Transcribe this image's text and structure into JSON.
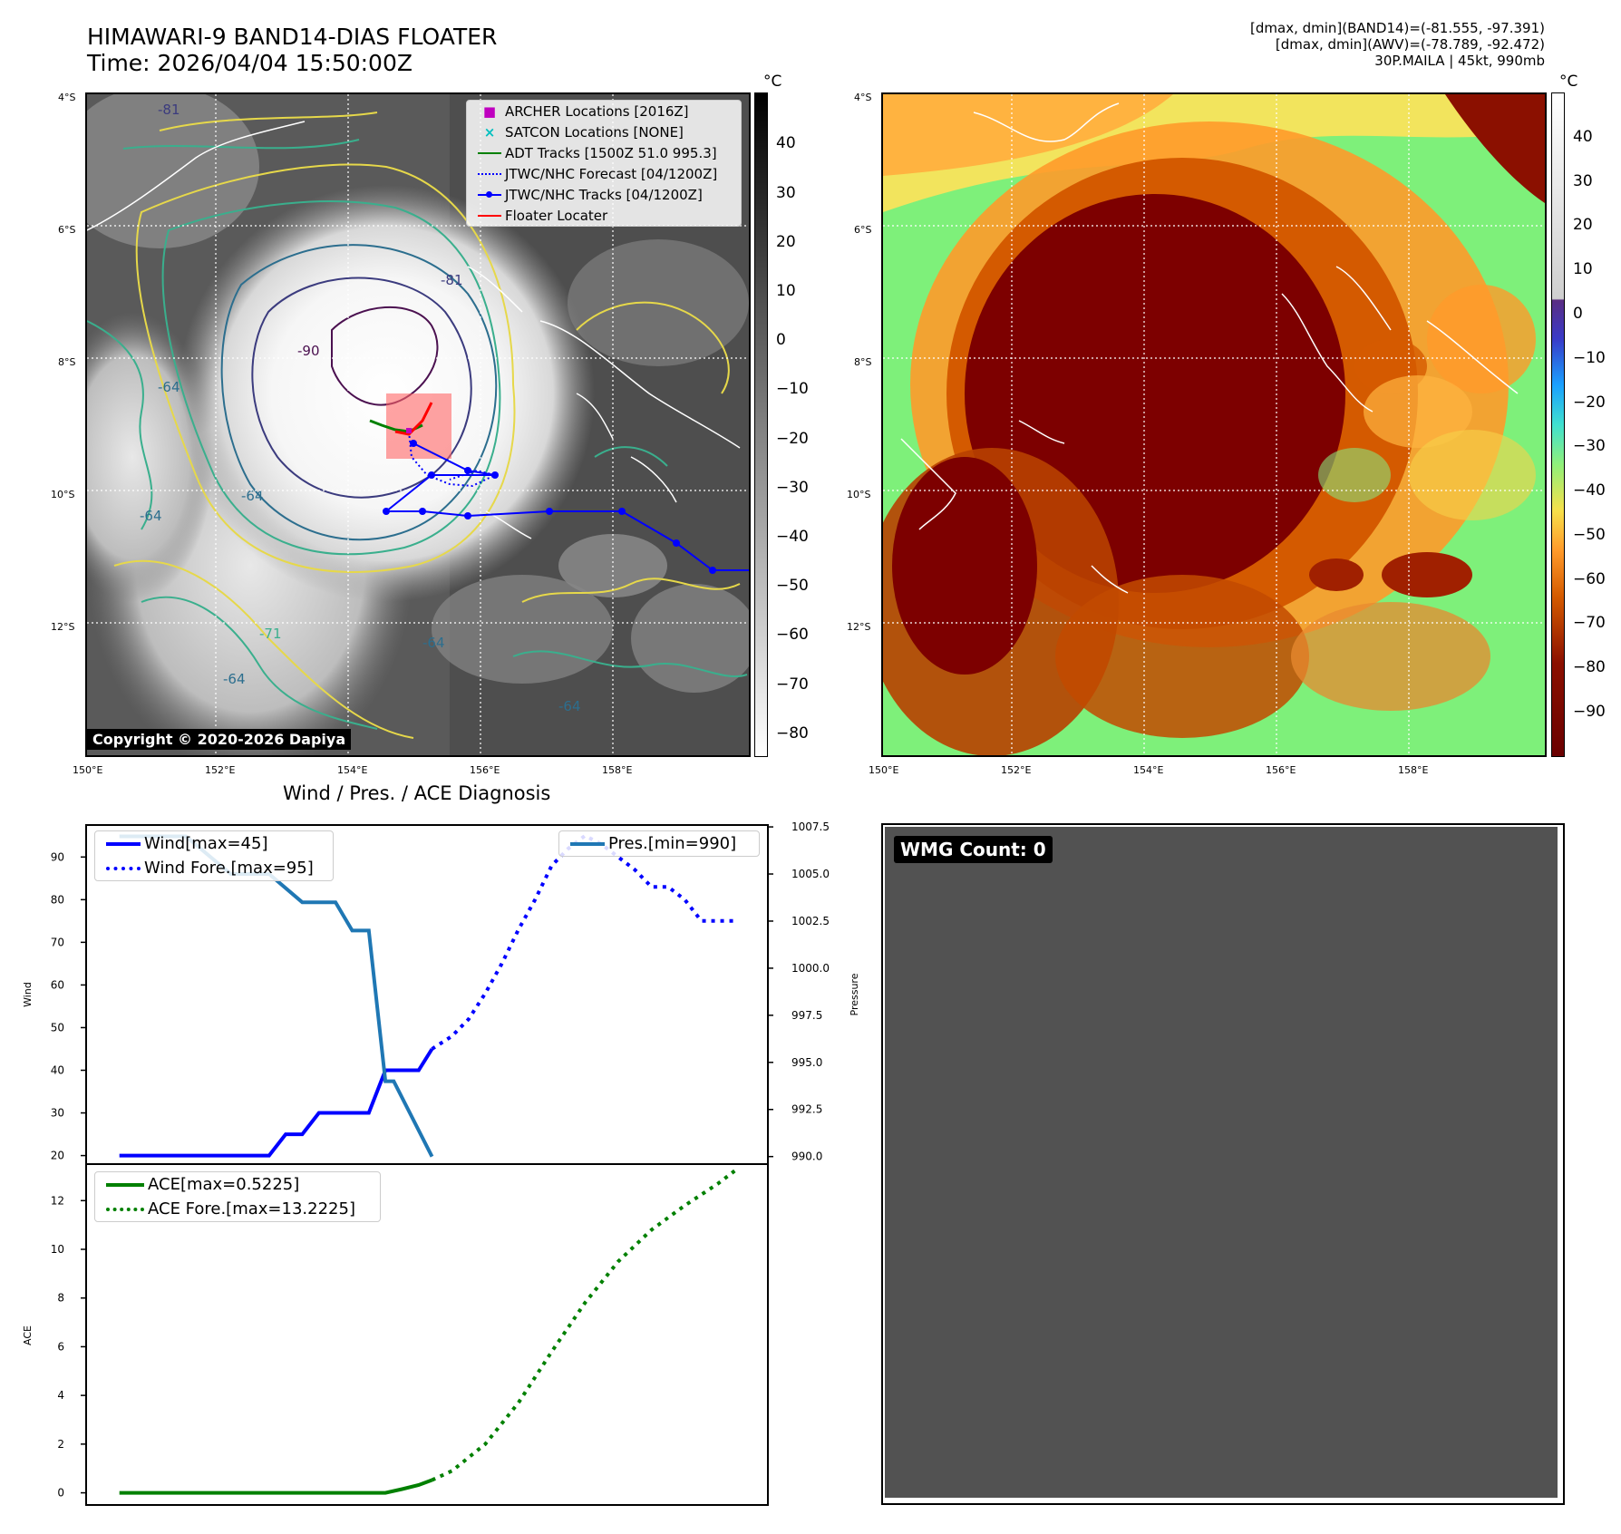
{
  "header": {
    "title_line1": "HIMAWARI-9 BAND14-DIAS FLOATER",
    "title_line2": "Time: 2026/04/04 15:50:00Z",
    "info_line1": "[dmax, dmin](BAND14)=(-81.555, -97.391)",
    "info_line2": "[dmax, dmin](AWV)=(-78.789, -92.472)",
    "info_line3": "30P.MAILA | 45kt, 990mb"
  },
  "map_left": {
    "lat_ticks": [
      "4°S",
      "6°S",
      "8°S",
      "10°S",
      "12°S"
    ],
    "lon_ticks": [
      "150°E",
      "152°E",
      "154°E",
      "156°E",
      "158°E"
    ],
    "colorbar_unit": "°C",
    "colorbar_ticks": [
      "40",
      "30",
      "20",
      "10",
      "0",
      "−10",
      "−20",
      "−30",
      "−40",
      "−50",
      "−60",
      "−70",
      "−80"
    ],
    "legend": [
      {
        "label": "ARCHER Locations [2016Z]",
        "color": "#bf00bf"
      },
      {
        "label": "SATCON Locations [NONE]",
        "color": "#00bfbf"
      },
      {
        "label": "ADT Tracks [1500Z 51.0 995.3]",
        "color": "#008000"
      },
      {
        "label": "JTWC/NHC Forecast [04/1200Z]",
        "color": "#0000ff"
      },
      {
        "label": "JTWC/NHC Tracks [04/1200Z]",
        "color": "#0000ff"
      },
      {
        "label": "Floater Locater",
        "color": "#ff0000"
      }
    ],
    "contour_labels": [
      "-81",
      "-90",
      "-64",
      "-64",
      "-64",
      "-64",
      "-64",
      "-81",
      "-71",
      "-64"
    ],
    "copyright": "Copyright © 2020-2026 Dapiya"
  },
  "map_right": {
    "lat_ticks": [
      "4°S",
      "6°S",
      "8°S",
      "10°S",
      "12°S"
    ],
    "lon_ticks": [
      "150°E",
      "152°E",
      "154°E",
      "156°E",
      "158°E"
    ],
    "colorbar_unit": "°C",
    "colorbar_ticks": [
      "40",
      "30",
      "20",
      "10",
      "0",
      "−10",
      "−20",
      "−30",
      "−40",
      "−50",
      "−60",
      "−70",
      "−80",
      "−90"
    ]
  },
  "diag_title": "Wind / Pres. / ACE Diagnosis",
  "wmg": {
    "label": "WMG Count: 0"
  },
  "chart_data": [
    {
      "type": "line",
      "title": "Wind / Pres. / ACE Diagnosis",
      "ylabel": "Wind",
      "y2label": "Pressure",
      "ylim": [
        18,
        97.5
      ],
      "y2lim": [
        989.6,
        1007.6
      ],
      "yticks": [
        20,
        30,
        40,
        50,
        60,
        70,
        80,
        90
      ],
      "y2ticks": [
        "990.0",
        "992.5",
        "995.0",
        "997.5",
        "1000.0",
        "1002.5",
        "1005.0",
        "1007.5"
      ],
      "xlim": [
        0,
        41
      ],
      "series": [
        {
          "name": "Wind[max=45]",
          "axis": "left",
          "style": "solid",
          "color": "#0000ff",
          "x": [
            2,
            11,
            12,
            13,
            14,
            16,
            17,
            18,
            18.8,
            20,
            20.8
          ],
          "y": [
            20,
            20,
            25,
            25,
            30,
            30,
            30,
            40,
            40,
            40,
            45
          ]
        },
        {
          "name": "Wind Fore.[max=95]",
          "axis": "left",
          "style": "dotted",
          "color": "#0000ff",
          "x": [
            20.8,
            22,
            23,
            24,
            25,
            26,
            27,
            28,
            29,
            30,
            31,
            32,
            33,
            34,
            35,
            36,
            37,
            38,
            39
          ],
          "y": [
            45,
            48,
            52,
            58,
            65,
            73,
            80,
            88,
            92,
            95,
            93,
            90,
            87,
            83,
            83,
            80,
            75,
            75,
            75
          ]
        },
        {
          "name": "Pres.[min=990]",
          "axis": "right",
          "style": "solid",
          "color": "#1f77b4",
          "x": [
            2,
            4.5,
            6,
            8.7,
            10.2,
            11,
            13,
            14.5,
            15,
            16,
            17,
            18,
            18.5,
            20.8
          ],
          "y": [
            1007,
            1007,
            1007,
            1005,
            1005,
            1005,
            1003.5,
            1003.5,
            1003.5,
            1002,
            1002,
            994,
            994,
            990
          ]
        }
      ]
    },
    {
      "type": "line",
      "ylabel": "ACE",
      "ylim": [
        -0.5,
        13.5
      ],
      "yticks": [
        0,
        2,
        4,
        6,
        8,
        10,
        12
      ],
      "xlim": [
        0,
        41
      ],
      "series": [
        {
          "name": "ACE[max=0.5225]",
          "style": "solid",
          "color": "#008000",
          "x": [
            2,
            15,
            16,
            17,
            18,
            19,
            20,
            20.8
          ],
          "y": [
            0,
            0,
            0,
            0,
            0,
            0.15,
            0.32,
            0.5225
          ]
        },
        {
          "name": "ACE Fore.[max=13.2225]",
          "style": "dotted",
          "color": "#008000",
          "x": [
            20.8,
            22,
            24,
            26,
            28,
            30,
            32,
            34,
            36,
            38,
            39
          ],
          "y": [
            0.5225,
            0.9,
            2.0,
            3.7,
            5.8,
            7.8,
            9.5,
            10.8,
            11.8,
            12.7,
            13.2225
          ]
        }
      ]
    }
  ]
}
